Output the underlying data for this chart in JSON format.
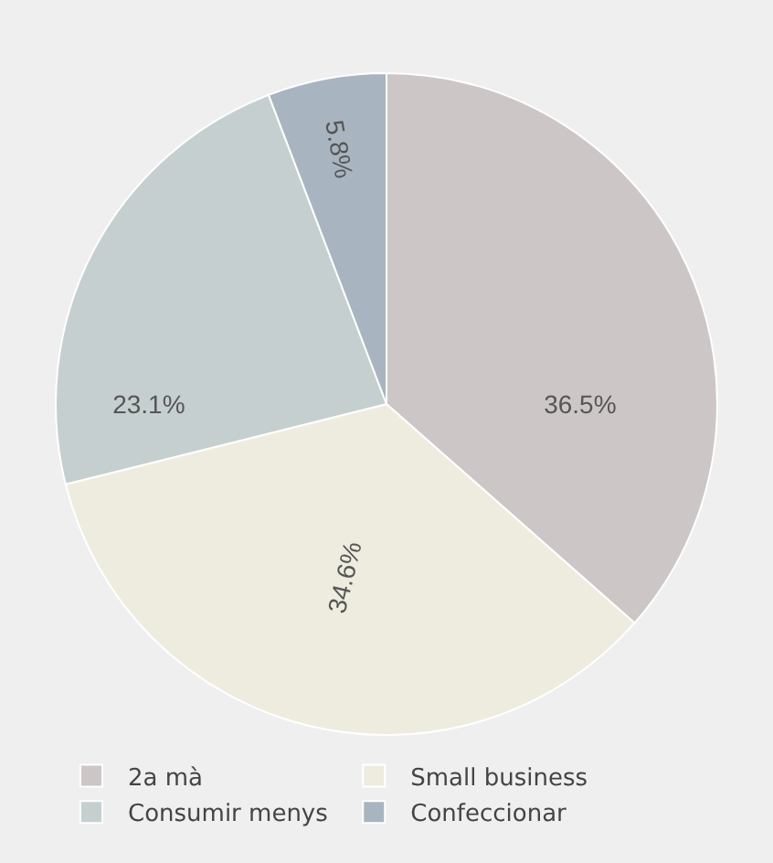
{
  "chart_data": {
    "type": "pie",
    "categories": [
      "2a mà",
      "Small business",
      "Consumir menys",
      "Confeccionar"
    ],
    "values": [
      36.5,
      34.6,
      23.1,
      5.8
    ],
    "value_labels": [
      "36.5%",
      "34.6%",
      "23.1%",
      "5.8%"
    ],
    "colors": [
      "#cdc6c7",
      "#eeecdf",
      "#c6cfcf",
      "#a8b5c0"
    ],
    "legend": "bottom"
  }
}
